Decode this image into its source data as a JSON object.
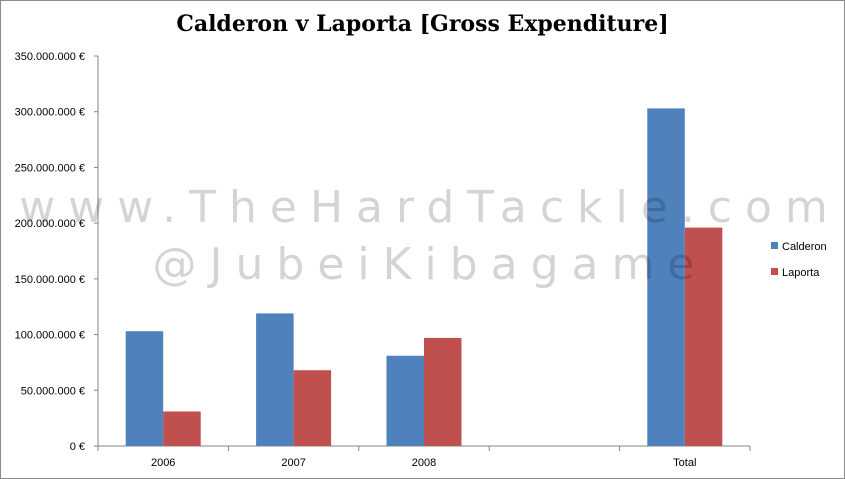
{
  "chart_data": {
    "type": "bar",
    "title": "Calderon v Laporta [Gross Expenditure]",
    "categories": [
      "2006",
      "2007",
      "2008",
      "",
      "Total"
    ],
    "series": [
      {
        "name": "Calderon",
        "color": "#4f81bd",
        "values": [
          103000000,
          119000000,
          81000000,
          null,
          303000000
        ]
      },
      {
        "name": "Laporta",
        "color": "#c0504d",
        "values": [
          31000000,
          68000000,
          97000000,
          null,
          196000000
        ]
      }
    ],
    "ylim": [
      0,
      350000000
    ],
    "yticks": [
      0,
      50000000,
      100000000,
      150000000,
      200000000,
      250000000,
      300000000,
      350000000
    ],
    "ytick_labels": [
      "0 €",
      "50.000.000 €",
      "100.000.000 €",
      "150.000.000 €",
      "200.000.000 €",
      "250.000.000 €",
      "300.000.000 €",
      "350.000.000 €"
    ],
    "xlabel": "",
    "ylabel": "",
    "grid": false,
    "legend": "right"
  },
  "watermark": {
    "line1": "www.TheHardTackle.com",
    "line2": "@JubeiKibagame"
  }
}
